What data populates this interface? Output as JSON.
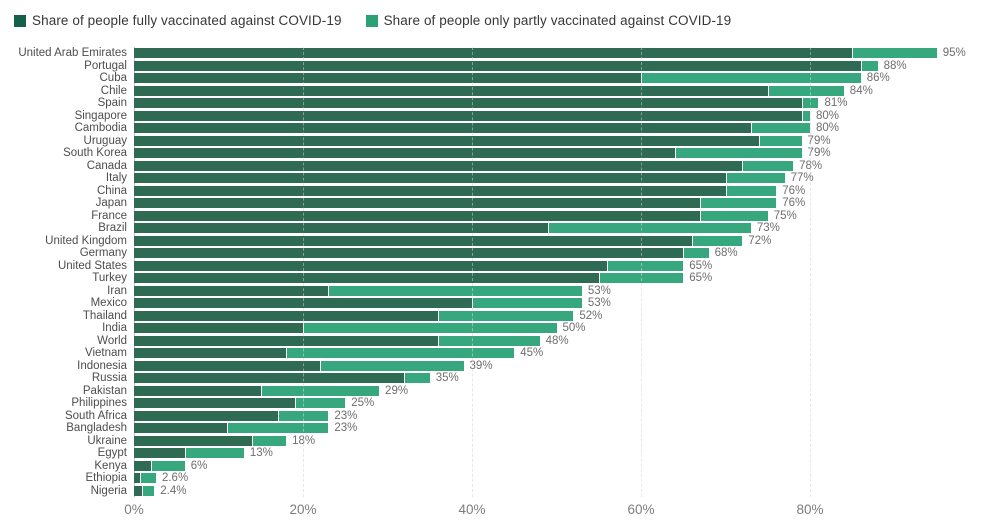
{
  "legend": {
    "items": [
      {
        "label": "Share of people fully vaccinated against COVID-19",
        "color_key": "fully"
      },
      {
        "label": "Share of people only partly vaccinated against COVID-19",
        "color_key": "partly"
      }
    ]
  },
  "colors": {
    "fully": "#14604a",
    "partly": "#2aa275",
    "fully_bar": "#2f6b53",
    "partly_bar": "#37a87d",
    "grid": "#d8d8d8",
    "country_label": "#4d4d4d",
    "value_label": "#6e6e6e",
    "axis_label": "#7d7d7d"
  },
  "chart_data": {
    "type": "bar",
    "orientation": "horizontal",
    "stacked": true,
    "title": "",
    "xlabel": "",
    "ylabel": "",
    "xlim": [
      0,
      101
    ],
    "x_ticks": [
      {
        "value": 0,
        "label": "0%"
      },
      {
        "value": 20,
        "label": "20%"
      },
      {
        "value": 40,
        "label": "40%"
      },
      {
        "value": 60,
        "label": "60%"
      },
      {
        "value": 80,
        "label": "80%"
      }
    ],
    "grid": "dashed-vertical",
    "legend_position": "top-left",
    "series_names": [
      "Share of people fully vaccinated against COVID-19",
      "Share of people only partly vaccinated against COVID-19"
    ],
    "rows": [
      {
        "name": "United Arab Emirates",
        "fully": 85,
        "partly": 10,
        "total_label": "95%"
      },
      {
        "name": "Portugal",
        "fully": 86,
        "partly": 2,
        "total_label": "88%"
      },
      {
        "name": "Cuba",
        "fully": 60,
        "partly": 26,
        "total_label": "86%"
      },
      {
        "name": "Chile",
        "fully": 75,
        "partly": 9,
        "total_label": "84%"
      },
      {
        "name": "Spain",
        "fully": 79,
        "partly": 2,
        "total_label": "81%"
      },
      {
        "name": "Singapore",
        "fully": 79,
        "partly": 1,
        "total_label": "80%"
      },
      {
        "name": "Cambodia",
        "fully": 73,
        "partly": 7,
        "total_label": "80%"
      },
      {
        "name": "Uruguay",
        "fully": 74,
        "partly": 5,
        "total_label": "79%"
      },
      {
        "name": "South Korea",
        "fully": 64,
        "partly": 15,
        "total_label": "79%"
      },
      {
        "name": "Canada",
        "fully": 72,
        "partly": 6,
        "total_label": "78%"
      },
      {
        "name": "Italy",
        "fully": 70,
        "partly": 7,
        "total_label": "77%"
      },
      {
        "name": "China",
        "fully": 70,
        "partly": 6,
        "total_label": "76%"
      },
      {
        "name": "Japan",
        "fully": 67,
        "partly": 9,
        "total_label": "76%"
      },
      {
        "name": "France",
        "fully": 67,
        "partly": 8,
        "total_label": "75%"
      },
      {
        "name": "Brazil",
        "fully": 49,
        "partly": 24,
        "total_label": "73%"
      },
      {
        "name": "United Kingdom",
        "fully": 66,
        "partly": 6,
        "total_label": "72%"
      },
      {
        "name": "Germany",
        "fully": 65,
        "partly": 3,
        "total_label": "68%"
      },
      {
        "name": "United States",
        "fully": 56,
        "partly": 9,
        "total_label": "65%"
      },
      {
        "name": "Turkey",
        "fully": 55,
        "partly": 10,
        "total_label": "65%"
      },
      {
        "name": "Iran",
        "fully": 23,
        "partly": 30,
        "total_label": "53%"
      },
      {
        "name": "Mexico",
        "fully": 40,
        "partly": 13,
        "total_label": "53%"
      },
      {
        "name": "Thailand",
        "fully": 36,
        "partly": 16,
        "total_label": "52%"
      },
      {
        "name": "India",
        "fully": 20,
        "partly": 30,
        "total_label": "50%"
      },
      {
        "name": "World",
        "fully": 36,
        "partly": 12,
        "total_label": "48%"
      },
      {
        "name": "Vietnam",
        "fully": 18,
        "partly": 27,
        "total_label": "45%"
      },
      {
        "name": "Indonesia",
        "fully": 22,
        "partly": 17,
        "total_label": "39%"
      },
      {
        "name": "Russia",
        "fully": 32,
        "partly": 3,
        "total_label": "35%"
      },
      {
        "name": "Pakistan",
        "fully": 15,
        "partly": 14,
        "total_label": "29%"
      },
      {
        "name": "Philippines",
        "fully": 19,
        "partly": 6,
        "total_label": "25%"
      },
      {
        "name": "South Africa",
        "fully": 17,
        "partly": 6,
        "total_label": "23%"
      },
      {
        "name": "Bangladesh",
        "fully": 11,
        "partly": 12,
        "total_label": "23%"
      },
      {
        "name": "Ukraine",
        "fully": 14,
        "partly": 4,
        "total_label": "18%"
      },
      {
        "name": "Egypt",
        "fully": 6,
        "partly": 7,
        "total_label": "13%"
      },
      {
        "name": "Kenya",
        "fully": 2,
        "partly": 4,
        "total_label": "6%"
      },
      {
        "name": "Ethiopia",
        "fully": 0.7,
        "partly": 1.9,
        "total_label": "2.6%"
      },
      {
        "name": "Nigeria",
        "fully": 1.0,
        "partly": 1.4,
        "total_label": "2.4%"
      }
    ]
  }
}
